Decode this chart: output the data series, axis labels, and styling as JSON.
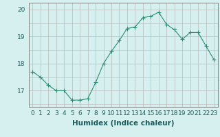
{
  "x": [
    0,
    1,
    2,
    3,
    4,
    5,
    6,
    7,
    8,
    9,
    10,
    11,
    12,
    13,
    14,
    15,
    16,
    17,
    18,
    19,
    20,
    21,
    22,
    23
  ],
  "y": [
    17.7,
    17.5,
    17.2,
    17.0,
    17.0,
    16.65,
    16.65,
    16.7,
    17.3,
    18.0,
    18.45,
    18.85,
    19.3,
    19.35,
    19.7,
    19.75,
    19.9,
    19.45,
    19.25,
    18.9,
    19.15,
    19.15,
    18.65,
    18.15
  ],
  "line_color": "#2e8b74",
  "marker_color": "#2e8b74",
  "background_color": "#d6f0f0",
  "grid_color": "#b8b8b8",
  "xlabel": "Humidex (Indice chaleur)",
  "xlabel_fontsize": 7.5,
  "tick_fontsize": 6.5,
  "ylim": [
    16.4,
    20.25
  ],
  "yticks": [
    17,
    18,
    19,
    20
  ],
  "xticks": [
    0,
    1,
    2,
    3,
    4,
    5,
    6,
    7,
    8,
    9,
    10,
    11,
    12,
    13,
    14,
    15,
    16,
    17,
    18,
    19,
    20,
    21,
    22,
    23
  ],
  "marker_size": 2.5,
  "line_width": 0.8,
  "spine_color": "#808080"
}
